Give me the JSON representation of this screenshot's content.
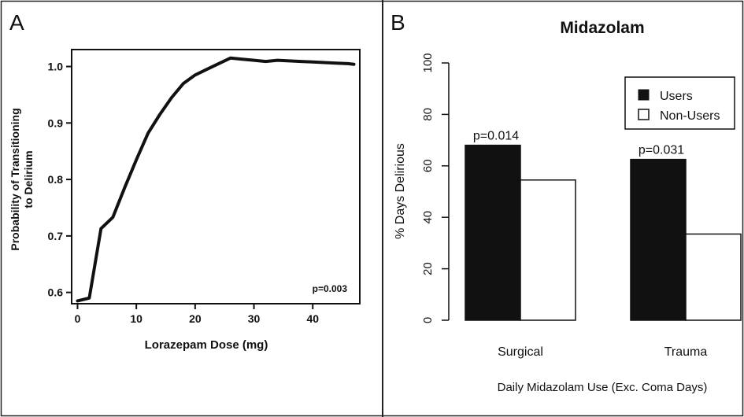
{
  "panels": {
    "a_label": "A",
    "b_label": "B"
  },
  "chart_data": [
    {
      "type": "line",
      "panel": "A",
      "title": "",
      "xlabel": "Lorazepam Dose (mg)",
      "ylabel_line1": "Probability of Transitioning",
      "ylabel_line2": "to Delirium",
      "xlim": [
        -1,
        48
      ],
      "ylim": [
        0.58,
        1.03
      ],
      "xticks": [
        0,
        10,
        20,
        30,
        40
      ],
      "xtick_labels": [
        "0",
        "10",
        "20",
        "30",
        "40"
      ],
      "yticks": [
        0.6,
        0.7,
        0.8,
        0.9,
        1.0
      ],
      "ytick_labels": [
        "0.6",
        "0.7",
        "0.8",
        "0.9",
        "1.0"
      ],
      "x": [
        0,
        2,
        4,
        6,
        8,
        10,
        12,
        14,
        16,
        18,
        20,
        22,
        24,
        26,
        28,
        30,
        32,
        34,
        36,
        38,
        40,
        42,
        44,
        46,
        47
      ],
      "y": [
        0.585,
        0.59,
        0.713,
        0.733,
        0.785,
        0.835,
        0.882,
        0.915,
        0.945,
        0.97,
        0.985,
        0.995,
        1.005,
        1.015,
        1.013,
        1.011,
        1.009,
        1.011,
        1.01,
        1.009,
        1.008,
        1.007,
        1.006,
        1.005,
        1.004
      ],
      "annotation": "p=0.003",
      "grid": false
    },
    {
      "type": "bar",
      "panel": "B",
      "title": "Midazolam",
      "xlabel": "Daily Midazolam Use (Exc. Coma Days)",
      "ylabel": "% Days Delirious",
      "ylim": [
        0,
        100
      ],
      "yticks": [
        0,
        20,
        40,
        60,
        80,
        100
      ],
      "ytick_labels": [
        "0",
        "20",
        "40",
        "60",
        "80",
        "100"
      ],
      "categories": [
        "Surgical",
        "Trauma"
      ],
      "series": [
        {
          "name": "Users",
          "values": [
            68,
            62.5
          ],
          "color": "#111111"
        },
        {
          "name": "Non-Users",
          "values": [
            54.5,
            33.5
          ],
          "color": "#ffffff"
        }
      ],
      "annotations": [
        "p=0.014",
        "p=0.031"
      ],
      "legend": "top-right",
      "grid": false
    }
  ]
}
